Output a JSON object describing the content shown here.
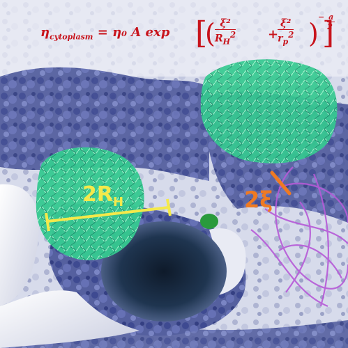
{
  "equation": {
    "eta_sub": "cytoplasm",
    "rhs": "= η₀ A exp",
    "xi_squared": "ξ²",
    "r_h": "R",
    "r_h_sub": "H",
    "r_p": "r",
    "r_p_sub": "p",
    "plus": "+",
    "exponent_num": "a",
    "exponent_den": "2",
    "exponent_sign": "−"
  },
  "labels": {
    "hydrodynamic_diameter": "2R",
    "hydrodynamic_sub": "H",
    "mesh_size": "2ξ"
  },
  "colors": {
    "equation": "#c8141c",
    "rh_bar": "#f4e94a",
    "xi_bar": "#ef7a22",
    "protein_green": "#3fdca0",
    "crowd_blue": "#4a57a6",
    "membrane": "#f2f3f8",
    "filaments": "#b65ad8"
  }
}
